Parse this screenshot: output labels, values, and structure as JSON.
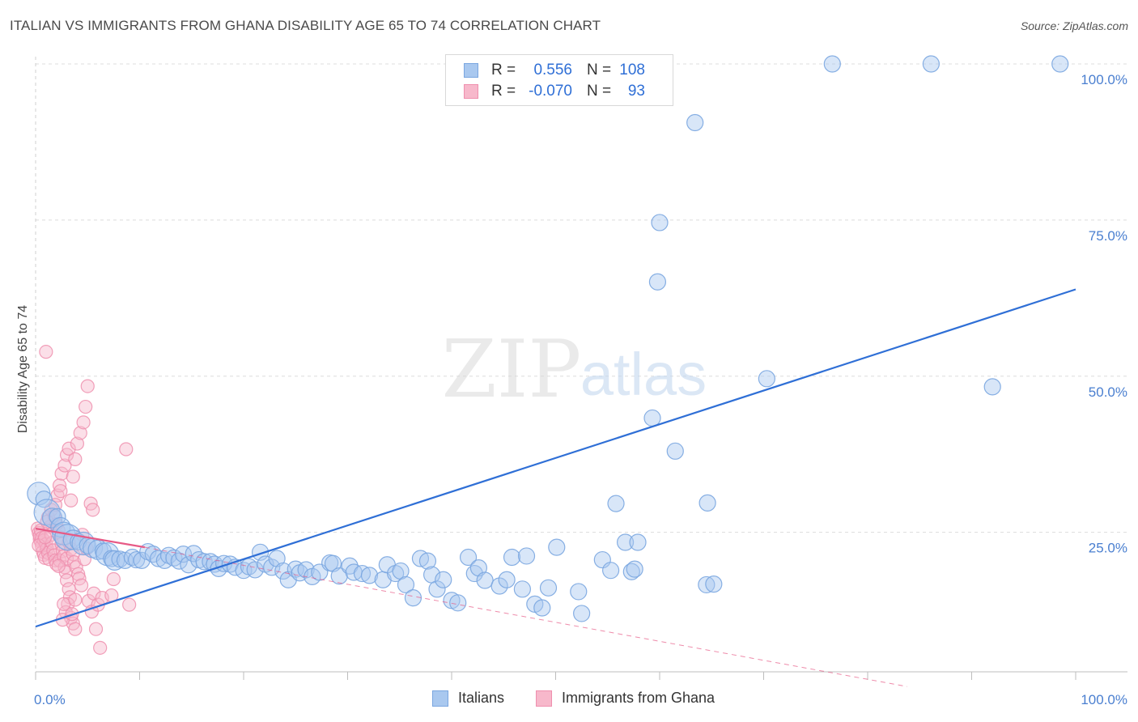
{
  "header": {
    "title": "ITALIAN VS IMMIGRANTS FROM GHANA DISABILITY AGE 65 TO 74 CORRELATION CHART",
    "source": "Source: ZipAtlas.com"
  },
  "watermark": {
    "zip": "ZIP",
    "atlas": "atlas"
  },
  "legend_top": {
    "rows": [
      {
        "r_label": "R =",
        "r_value": "0.556",
        "n_label": "N =",
        "n_value": "108"
      },
      {
        "r_label": "R =",
        "r_value": "-0.070",
        "n_label": "N =",
        "n_value": "93"
      }
    ]
  },
  "legend_bottom": {
    "items": [
      "Italians",
      "Immigrants from Ghana"
    ]
  },
  "colors": {
    "italians_fill": "#a9c8ef",
    "italians_stroke": "#7aa6e0",
    "italians_line": "#2f6fd6",
    "ghana_fill": "#f7b8cb",
    "ghana_stroke": "#ef8fae",
    "ghana_line": "#e75a86",
    "grid": "#dcdcdc",
    "axis_text": "#4a7fd0"
  },
  "chart_data": {
    "type": "scatter",
    "title": "ITALIAN VS IMMIGRANTS FROM GHANA DISABILITY AGE 65 TO 74 CORRELATION CHART",
    "xlabel": "",
    "ylabel": "Disability Age 65 to 74",
    "xlim": [
      0,
      100
    ],
    "ylim": [
      0,
      105
    ],
    "x_tick_labels": [
      "0.0%",
      "100.0%"
    ],
    "y_ticks": [
      25,
      50,
      75,
      100
    ],
    "y_tick_labels": [
      "25.0%",
      "50.0%",
      "75.0%",
      "100.0%"
    ],
    "series": [
      {
        "name": "Italians",
        "r": 0.556,
        "n": 108,
        "trend": {
          "x": [
            0,
            100
          ],
          "y": [
            9.9,
            63.9
          ],
          "style": "solid"
        },
        "points": [
          [
            0.3,
            31.2,
            14
          ],
          [
            0.8,
            30.3,
            10
          ],
          [
            1.1,
            28.2,
            16
          ],
          [
            1.6,
            27.3,
            12
          ],
          [
            2.1,
            27.5,
            10
          ],
          [
            2.4,
            25.8,
            12
          ],
          [
            2.7,
            24.8,
            14
          ],
          [
            3.1,
            24.2,
            16
          ],
          [
            3.6,
            23.8,
            12
          ],
          [
            4.1,
            23.5,
            10
          ],
          [
            4.6,
            23.2,
            14
          ],
          [
            5.0,
            22.9,
            10
          ],
          [
            5.5,
            22.5,
            12
          ],
          [
            6.0,
            22.2,
            12
          ],
          [
            6.5,
            22.0,
            10
          ],
          [
            6.9,
            21.5,
            14
          ],
          [
            7.3,
            20.8,
            10
          ],
          [
            7.6,
            20.5,
            12
          ],
          [
            8.1,
            20.7,
            10
          ],
          [
            8.6,
            20.5,
            10
          ],
          [
            9.3,
            21.0,
            10
          ],
          [
            9.7,
            20.6,
            10
          ],
          [
            10.2,
            20.5,
            10
          ],
          [
            10.8,
            21.9,
            10
          ],
          [
            11.3,
            21.5,
            10
          ],
          [
            11.8,
            20.8,
            10
          ],
          [
            12.4,
            20.5,
            10
          ],
          [
            12.8,
            21.3,
            10
          ],
          [
            13.3,
            20.9,
            10
          ],
          [
            13.8,
            20.4,
            10
          ],
          [
            14.2,
            21.5,
            10
          ],
          [
            14.7,
            19.8,
            10
          ],
          [
            15.2,
            21.6,
            10
          ],
          [
            15.7,
            20.6,
            10
          ],
          [
            16.2,
            20.3,
            10
          ],
          [
            16.8,
            20.3,
            10
          ],
          [
            17.2,
            19.9,
            10
          ],
          [
            17.6,
            19.2,
            10
          ],
          [
            18.1,
            20.0,
            10
          ],
          [
            18.7,
            19.9,
            10
          ],
          [
            19.2,
            19.4,
            10
          ],
          [
            20.0,
            18.9,
            10
          ],
          [
            20.5,
            19.5,
            10
          ],
          [
            21.1,
            19.0,
            10
          ],
          [
            21.6,
            21.8,
            10
          ],
          [
            22.1,
            19.9,
            10
          ],
          [
            22.7,
            19.4,
            10
          ],
          [
            23.2,
            20.8,
            10
          ],
          [
            23.8,
            18.8,
            10
          ],
          [
            24.3,
            17.4,
            10
          ],
          [
            25.0,
            19.1,
            10
          ],
          [
            25.4,
            18.5,
            10
          ],
          [
            26.0,
            19.0,
            10
          ],
          [
            26.6,
            17.9,
            10
          ],
          [
            27.3,
            18.6,
            10
          ],
          [
            28.3,
            20.1,
            10
          ],
          [
            28.6,
            20.0,
            10
          ],
          [
            29.2,
            18.0,
            10
          ],
          [
            30.2,
            19.6,
            10
          ],
          [
            30.6,
            18.6,
            10
          ],
          [
            31.4,
            18.4,
            10
          ],
          [
            32.1,
            18.1,
            10
          ],
          [
            33.4,
            17.4,
            10
          ],
          [
            33.8,
            19.8,
            10
          ],
          [
            34.6,
            18.4,
            10
          ],
          [
            35.1,
            18.8,
            10
          ],
          [
            35.6,
            16.6,
            10
          ],
          [
            36.3,
            14.5,
            10
          ],
          [
            37.0,
            20.8,
            10
          ],
          [
            37.7,
            20.4,
            10
          ],
          [
            38.1,
            18.2,
            10
          ],
          [
            38.6,
            15.9,
            10
          ],
          [
            39.2,
            17.4,
            10
          ],
          [
            40.0,
            14.1,
            10
          ],
          [
            40.6,
            13.7,
            10
          ],
          [
            41.6,
            21.0,
            10
          ],
          [
            42.2,
            18.4,
            10
          ],
          [
            42.6,
            19.3,
            10
          ],
          [
            43.2,
            17.3,
            10
          ],
          [
            44.6,
            16.4,
            10
          ],
          [
            45.3,
            17.4,
            10
          ],
          [
            45.8,
            21.0,
            10
          ],
          [
            46.8,
            15.9,
            10
          ],
          [
            47.2,
            21.2,
            10
          ],
          [
            48.0,
            13.5,
            10
          ],
          [
            48.7,
            12.9,
            10
          ],
          [
            49.3,
            16.1,
            10
          ],
          [
            50.1,
            22.6,
            10
          ],
          [
            52.2,
            15.5,
            10
          ],
          [
            52.5,
            12.0,
            10
          ],
          [
            54.5,
            20.6,
            10
          ],
          [
            55.3,
            18.9,
            10
          ],
          [
            55.8,
            29.6,
            10
          ],
          [
            56.7,
            23.4,
            10
          ],
          [
            57.3,
            18.7,
            10
          ],
          [
            57.6,
            19.1,
            10
          ],
          [
            57.9,
            23.4,
            10
          ],
          [
            59.3,
            43.3,
            10
          ],
          [
            59.8,
            65.1,
            10
          ],
          [
            60.0,
            74.6,
            10
          ],
          [
            61.5,
            38.0,
            10
          ],
          [
            63.4,
            90.6,
            10
          ],
          [
            64.5,
            16.6,
            10
          ],
          [
            64.6,
            29.7,
            10
          ],
          [
            65.2,
            16.7,
            10
          ],
          [
            70.3,
            49.6,
            10
          ],
          [
            76.6,
            100.0,
            10
          ],
          [
            86.1,
            100.0,
            10
          ],
          [
            92.0,
            48.3,
            10
          ],
          [
            98.5,
            100.0,
            10
          ]
        ]
      },
      {
        "name": "Immigrants from Ghana",
        "r": -0.07,
        "n": 93,
        "trend": {
          "x": [
            0,
            10.5
          ],
          "y": [
            25.6,
            22.6
          ],
          "style": "solid"
        },
        "trend_extension": {
          "x": [
            10.5,
            83.8
          ],
          "y": [
            22.6,
            0.3
          ],
          "style": "dashed"
        },
        "points": [
          [
            0.2,
            25.6
          ],
          [
            0.3,
            24.9
          ],
          [
            0.4,
            23.9
          ],
          [
            0.5,
            23.5
          ],
          [
            0.6,
            22.8
          ],
          [
            0.7,
            21.9
          ],
          [
            0.8,
            21.4
          ],
          [
            0.9,
            20.9
          ],
          [
            0.4,
            24.4
          ],
          [
            0.5,
            25.3
          ],
          [
            0.6,
            24.1
          ],
          [
            0.8,
            23.7
          ],
          [
            1.0,
            23.1
          ],
          [
            1.1,
            22.4
          ],
          [
            1.2,
            21.7
          ],
          [
            1.3,
            20.7
          ],
          [
            0.3,
            22.9
          ],
          [
            1.4,
            25.9
          ],
          [
            1.5,
            24.6
          ],
          [
            1.6,
            23.3
          ],
          [
            1.7,
            22.1
          ],
          [
            1.8,
            21.3
          ],
          [
            1.9,
            20.5
          ],
          [
            2.0,
            19.9
          ],
          [
            1.2,
            27.4
          ],
          [
            1.5,
            28.6
          ],
          [
            1.8,
            27.6
          ],
          [
            2.0,
            26.3
          ],
          [
            2.2,
            25.3
          ],
          [
            2.4,
            24.2
          ],
          [
            2.5,
            23.1
          ],
          [
            2.6,
            22.0
          ],
          [
            2.3,
            20.5
          ],
          [
            2.7,
            21.2
          ],
          [
            2.8,
            19.4
          ],
          [
            2.9,
            18.6
          ],
          [
            3.0,
            17.3
          ],
          [
            3.2,
            15.9
          ],
          [
            3.3,
            14.6
          ],
          [
            3.1,
            13.5
          ],
          [
            2.9,
            12.2
          ],
          [
            3.4,
            11.3
          ],
          [
            3.6,
            10.4
          ],
          [
            3.8,
            9.5
          ],
          [
            2.6,
            11.0
          ],
          [
            2.7,
            13.5
          ],
          [
            3.5,
            11.9
          ],
          [
            3.0,
            20.8
          ],
          [
            3.2,
            23.4
          ],
          [
            3.4,
            22.3
          ],
          [
            3.6,
            21.5
          ],
          [
            3.7,
            20.2
          ],
          [
            3.9,
            19.4
          ],
          [
            4.1,
            18.3
          ],
          [
            4.2,
            17.6
          ],
          [
            4.4,
            16.5
          ],
          [
            2.1,
            30.9
          ],
          [
            2.3,
            32.5
          ],
          [
            2.5,
            34.4
          ],
          [
            2.8,
            35.7
          ],
          [
            3.0,
            37.4
          ],
          [
            3.2,
            38.4
          ],
          [
            3.4,
            30.1
          ],
          [
            3.6,
            33.9
          ],
          [
            3.8,
            36.7
          ],
          [
            4.0,
            39.2
          ],
          [
            4.3,
            40.9
          ],
          [
            4.6,
            42.6
          ],
          [
            4.8,
            45.1
          ],
          [
            5.0,
            48.4
          ],
          [
            5.3,
            29.6
          ],
          [
            5.5,
            28.6
          ],
          [
            1.0,
            53.9
          ],
          [
            0.9,
            24.2
          ],
          [
            1.1,
            26.7
          ],
          [
            1.9,
            29.4
          ],
          [
            2.4,
            31.6
          ],
          [
            4.5,
            24.6
          ],
          [
            4.7,
            20.7
          ],
          [
            5.1,
            14.0
          ],
          [
            5.4,
            12.3
          ],
          [
            5.6,
            15.2
          ],
          [
            6.0,
            13.4
          ],
          [
            6.4,
            14.5
          ],
          [
            7.3,
            14.9
          ],
          [
            7.5,
            17.5
          ],
          [
            8.7,
            38.3
          ],
          [
            9.0,
            13.4
          ],
          [
            5.8,
            9.5
          ],
          [
            6.2,
            6.5
          ],
          [
            3.8,
            14.2
          ],
          [
            4.9,
            22.4
          ],
          [
            2.2,
            19.6
          ]
        ]
      }
    ]
  }
}
